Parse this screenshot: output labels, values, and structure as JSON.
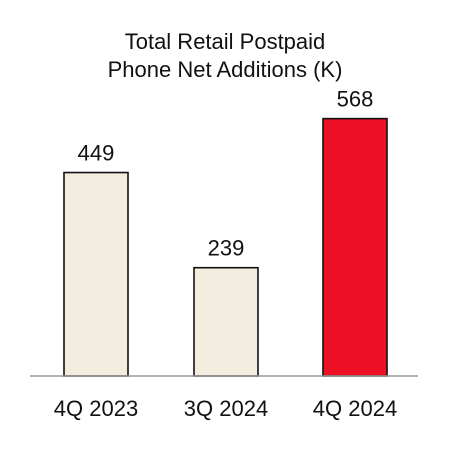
{
  "chart_data": {
    "type": "bar",
    "title_lines": [
      "Total Retail Postpaid",
      "Phone Net Additions (K)"
    ],
    "categories": [
      "4Q 2023",
      "3Q 2024",
      "4Q 2024"
    ],
    "values": [
      449,
      239,
      568
    ],
    "data_labels": [
      "449",
      "239",
      "568"
    ],
    "ylim": [
      0,
      640
    ],
    "grid": false,
    "bar_colors": [
      "#f3ede0",
      "#f3ede0",
      "#ee1125"
    ],
    "bar_stroke": "#111111",
    "baseline_color": "#9a9a9a"
  }
}
